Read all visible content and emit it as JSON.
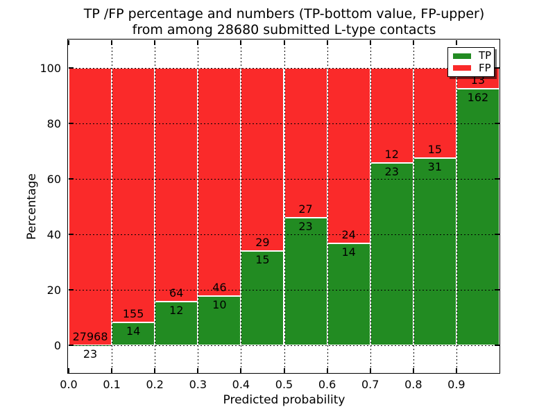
{
  "chart_data": {
    "type": "bar",
    "stacked": true,
    "normalized_to_percent": true,
    "title": "TP /FP percentage and numbers (TP-bottom value, FP-upper)",
    "subtitle": "from among 28680 submitted L-type contacts",
    "xlabel": "Predicted probability",
    "ylabel": "Percentage",
    "total_contacts": 28680,
    "categories": [
      "0.0-0.1",
      "0.1-0.2",
      "0.2-0.3",
      "0.3-0.4",
      "0.4-0.5",
      "0.5-0.6",
      "0.6-0.7",
      "0.7-0.8",
      "0.8-0.9",
      "0.9-1.0"
    ],
    "x_tick_labels": [
      "0.0",
      "0.1",
      "0.2",
      "0.3",
      "0.4",
      "0.5",
      "0.6",
      "0.7",
      "0.8",
      "0.9"
    ],
    "y_ticks": [
      0,
      20,
      40,
      60,
      80,
      100
    ],
    "xlim": [
      0.0,
      1.0
    ],
    "ylim": [
      -10,
      110
    ],
    "grid": "dotted",
    "bar_edge_color": "#ffffff",
    "series": [
      {
        "name": "TP",
        "color": "#228b22",
        "values": [
          23,
          14,
          12,
          10,
          15,
          23,
          14,
          23,
          31,
          162
        ]
      },
      {
        "name": "FP",
        "color": "#fa2a2a",
        "values": [
          27968,
          155,
          64,
          46,
          29,
          27,
          24,
          12,
          15,
          13
        ]
      }
    ],
    "legend": {
      "position": "upper right",
      "entries": [
        {
          "label": "TP",
          "color": "#228b22"
        },
        {
          "label": "FP",
          "color": "#fa2a2a"
        }
      ]
    }
  }
}
